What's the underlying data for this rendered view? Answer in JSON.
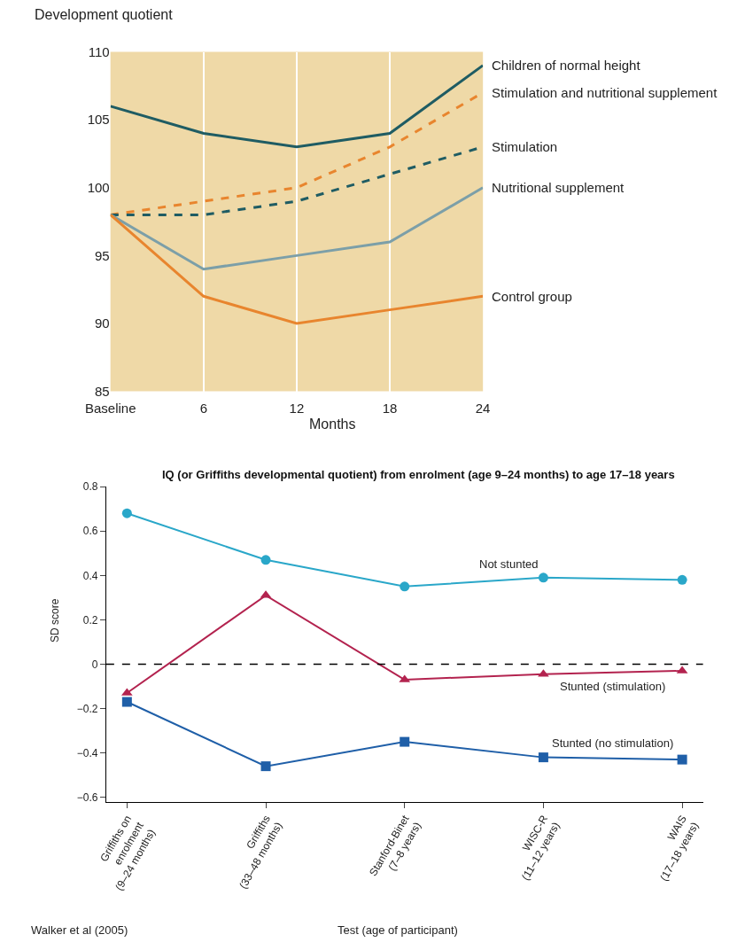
{
  "chart_data": [
    {
      "type": "line",
      "ylabel": "Development quotient",
      "xlabel": "Months",
      "categories": [
        "Baseline",
        "6",
        "12",
        "18",
        "24"
      ],
      "ylim": [
        85,
        110
      ],
      "yticks": [
        85,
        90,
        95,
        100,
        105,
        110
      ],
      "grid": "x",
      "legend": false,
      "marker": "none",
      "series": [
        {
          "name": "Children of normal height",
          "color": "#1f5c63",
          "line_style": "solid",
          "values": [
            106,
            104,
            103,
            104,
            109
          ]
        },
        {
          "name": "Stimulation and nutritional supplement",
          "color": "#e8852e",
          "line_style": "dashed",
          "values": [
            98,
            99,
            100,
            103,
            107
          ]
        },
        {
          "name": "Stimulation",
          "color": "#1f5c63",
          "line_style": "dashed",
          "values": [
            98,
            98,
            99,
            101,
            103
          ]
        },
        {
          "name": "Nutritional supplement",
          "color": "#7c9fa8",
          "line_style": "solid",
          "values": [
            98,
            94,
            95,
            96,
            100
          ]
        },
        {
          "name": "Control group",
          "color": "#e8852e",
          "line_style": "solid",
          "values": [
            98,
            92,
            90,
            91,
            92
          ]
        }
      ]
    },
    {
      "type": "line",
      "title": "IQ (or Griffiths developmental quotient) from enrolment (age 9–24 months) to age 17–18 years",
      "ylabel": "SD score",
      "xlabel": "Test (age of participant)",
      "categories": [
        "Griffiths on enrolment (9–24 months)",
        "Griffiths (33–48 months)",
        "Stanford-Binet (7–8 years)",
        "WISC-R (11–12 years)",
        "WAIS (17–18 years)"
      ],
      "ylim": [
        -0.62,
        0.8
      ],
      "yticks": [
        {
          "value": -0.6,
          "label": "−0.6"
        },
        {
          "value": -0.4,
          "label": "−0.4"
        },
        {
          "value": -0.2,
          "label": "−0.2"
        },
        0,
        0.2,
        0.4,
        0.6,
        0.8
      ],
      "grid": false,
      "legend": false,
      "ref_lines": [
        {
          "axis": "y",
          "value": 0,
          "color": "#000000",
          "line_style": "dashed"
        }
      ],
      "annotations": [
        "Walker et al (2005)"
      ],
      "series": [
        {
          "name": "Not stunted",
          "color": "#2aa7c9",
          "marker": "circle",
          "values": [
            0.68,
            0.47,
            0.35,
            0.39,
            0.38
          ]
        },
        {
          "name": "Stunted (stimulation)",
          "color": "#b3234f",
          "marker": "triangle",
          "values": [
            -0.13,
            0.31,
            -0.07,
            -0.045,
            -0.03
          ]
        },
        {
          "name": "Stunted (no stimulation)",
          "color": "#1f5fa8",
          "marker": "square",
          "values": [
            -0.17,
            -0.46,
            -0.35,
            -0.42,
            -0.43
          ]
        }
      ]
    }
  ]
}
